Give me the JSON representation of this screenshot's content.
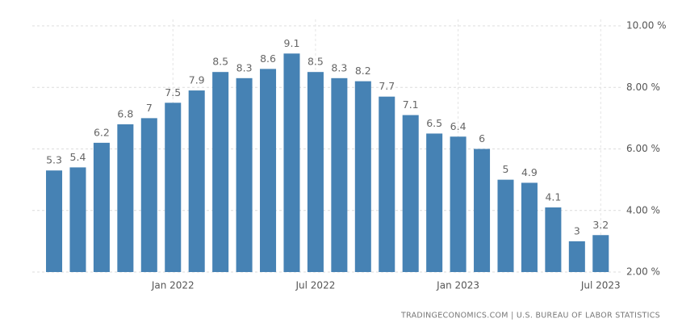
{
  "chart_data": {
    "type": "bar",
    "categories": [
      null,
      null,
      null,
      null,
      null,
      "Jan 2022",
      null,
      null,
      null,
      null,
      null,
      "Jul 2022",
      null,
      null,
      null,
      null,
      null,
      "Jan 2023",
      null,
      null,
      null,
      null,
      null,
      "Jul 2023"
    ],
    "values": [
      5.3,
      5.4,
      6.2,
      6.8,
      7,
      7.5,
      7.9,
      8.5,
      8.3,
      8.6,
      9.1,
      8.5,
      8.3,
      8.2,
      7.7,
      7.1,
      6.5,
      6.4,
      6,
      5,
      4.9,
      4.1,
      3,
      3.2
    ],
    "color": "#4682b4",
    "ylim": [
      2,
      10
    ],
    "yticks": [
      {
        "value": 2,
        "label": "2.00 %"
      },
      {
        "value": 4,
        "label": "4.00 %"
      },
      {
        "value": 6,
        "label": "6.00 %"
      },
      {
        "value": 8,
        "label": "8.00 %"
      },
      {
        "value": 10,
        "label": "10.00 %"
      }
    ],
    "grid": true,
    "source": "TRADINGECONOMICS.COM | U.S. BUREAU OF LABOR STATISTICS"
  }
}
